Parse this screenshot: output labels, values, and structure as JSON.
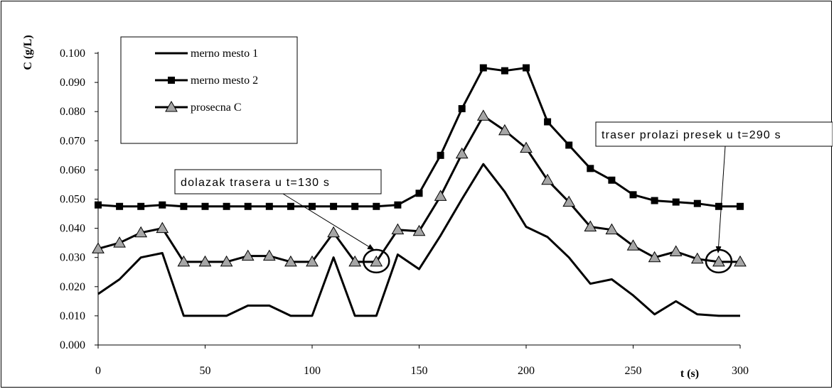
{
  "chart_data": {
    "type": "line",
    "xlabel": "t (s)",
    "ylabel": "C (g/L)",
    "xlim": [
      0,
      300
    ],
    "ylim": [
      0,
      0.1
    ],
    "x_ticks": [
      "0",
      "50",
      "100",
      "150",
      "200",
      "250",
      "300"
    ],
    "y_ticks": [
      "0.000",
      "0.010",
      "0.020",
      "0.030",
      "0.040",
      "0.050",
      "0.060",
      "0.070",
      "0.080",
      "0.090",
      "0.100"
    ],
    "grid": false,
    "legend_position": "top-left",
    "x": [
      0,
      10,
      20,
      30,
      40,
      50,
      60,
      70,
      80,
      90,
      100,
      110,
      120,
      130,
      140,
      150,
      160,
      170,
      180,
      190,
      200,
      210,
      220,
      230,
      240,
      250,
      260,
      270,
      280,
      290,
      300
    ],
    "series": [
      {
        "name": "merno mesto 1",
        "marker": "none",
        "values": [
          0.0175,
          0.0225,
          0.03,
          0.0315,
          0.01,
          0.01,
          0.01,
          0.0135,
          0.0135,
          0.01,
          0.01,
          0.03,
          0.01,
          0.01,
          0.031,
          0.026,
          0.0375,
          0.05,
          0.062,
          0.0525,
          0.0405,
          0.037,
          0.03,
          0.021,
          0.0225,
          0.017,
          0.0105,
          0.015,
          0.0105,
          0.01,
          0.01
        ]
      },
      {
        "name": "merno mesto 2",
        "marker": "square",
        "values": [
          0.048,
          0.0475,
          0.0475,
          0.048,
          0.0475,
          0.0475,
          0.0475,
          0.0475,
          0.0475,
          0.0475,
          0.0475,
          0.0475,
          0.0475,
          0.0475,
          0.048,
          0.052,
          0.065,
          0.081,
          0.095,
          0.094,
          0.095,
          0.0765,
          0.0685,
          0.0605,
          0.0565,
          0.0515,
          0.0495,
          0.049,
          0.0485,
          0.0475,
          0.0475
        ]
      },
      {
        "name": "prosecna C",
        "marker": "triangle",
        "values": [
          0.033,
          0.035,
          0.0385,
          0.04,
          0.0285,
          0.0285,
          0.0285,
          0.0305,
          0.0305,
          0.0285,
          0.0285,
          0.0385,
          0.0285,
          0.0285,
          0.0395,
          0.039,
          0.051,
          0.0655,
          0.0785,
          0.0735,
          0.0675,
          0.0565,
          0.049,
          0.0405,
          0.0395,
          0.034,
          0.03,
          0.032,
          0.0295,
          0.0285,
          0.0285
        ]
      }
    ],
    "annotations": [
      {
        "text": "dolazak trasera u t=130 s",
        "target_x": 130,
        "target_y": 0.0285
      },
      {
        "text": "traser prolazi presek u t=290 s",
        "target_x": 290,
        "target_y": 0.0285
      }
    ]
  }
}
